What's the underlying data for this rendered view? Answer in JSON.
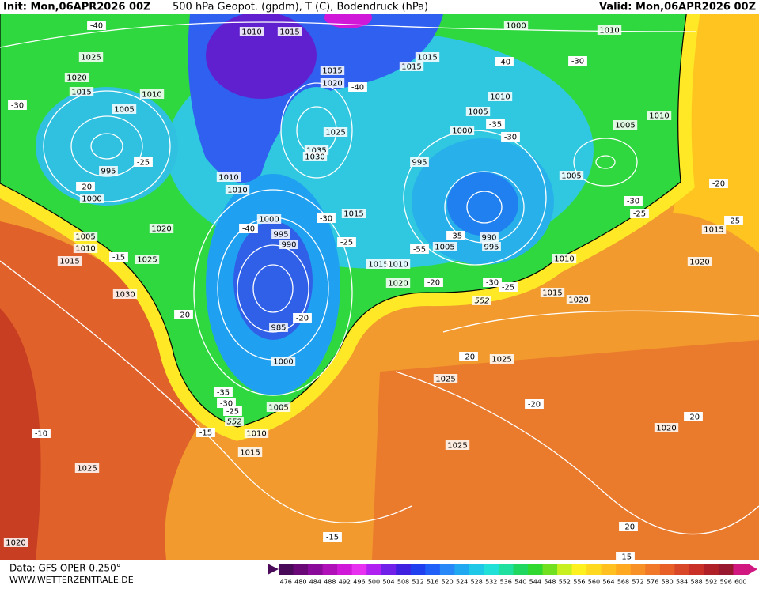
{
  "header": {
    "init": "Init: Mon,06APR2026 00Z",
    "title": "500 hPa Geopot. (gpdm), T (C), Bodendruck (hPa)",
    "valid": "Valid: Mon,06APR2026 00Z"
  },
  "map_labels": [
    "-40",
    "1010",
    "1015",
    "1025",
    "1020",
    "1015",
    "1010",
    "-30",
    "1005",
    "995",
    "-25",
    "-20",
    "1000",
    "1020",
    "1015",
    "-40",
    "1025",
    "1035",
    "1030",
    "1010",
    "1010",
    "1015",
    "1015",
    "-40",
    "-30",
    "1010",
    "1000",
    "1010",
    "1005",
    "-35",
    "1000",
    "-30",
    "1005",
    "1010",
    "995",
    "1005",
    "-20",
    "-30",
    "-25",
    "-25",
    "1015",
    "1020",
    "1000",
    "995",
    "990",
    "-30",
    "1015",
    "-40",
    "-25",
    "1005",
    "1010",
    "1015",
    "-15",
    "1025",
    "1020",
    "-35",
    "1005",
    "990",
    "995",
    "-55",
    "1015",
    "1010",
    "1010",
    "1020",
    "-20",
    "-30",
    "-25",
    "552",
    "1015",
    "1020",
    "1030",
    "-20",
    "-20",
    "985",
    "1000",
    "-20",
    "1025",
    "1025",
    "-35",
    "-30",
    "-25",
    "552",
    "1005",
    "-20",
    "-20",
    "1020",
    "-15",
    "1010",
    "-10",
    "1025",
    "1015",
    "1025",
    "-20",
    "-15",
    "1020",
    "-15"
  ],
  "legend": {
    "values": [
      476,
      480,
      484,
      488,
      492,
      496,
      500,
      504,
      508,
      512,
      516,
      520,
      524,
      528,
      532,
      536,
      540,
      544,
      548,
      552,
      556,
      560,
      564,
      568,
      572,
      576,
      580,
      584,
      588,
      592,
      596,
      600
    ],
    "colors": [
      "#4a0a5a",
      "#6a0878",
      "#8a0a9a",
      "#b010b8",
      "#d018d8",
      "#e830f0",
      "#b020f0",
      "#7020e8",
      "#4020e0",
      "#2040f0",
      "#2060f8",
      "#2888f8",
      "#20a8f0",
      "#20c8e8",
      "#20e0d8",
      "#20e0a0",
      "#20d860",
      "#30d830",
      "#70e020",
      "#c8f020",
      "#fff020",
      "#ffd820",
      "#ffc020",
      "#ffa820",
      "#f89028",
      "#f07828",
      "#e86028",
      "#d84828",
      "#c83028",
      "#b02028",
      "#981830",
      "#d01880"
    ]
  },
  "footer": {
    "data": "Data: GFS OPER 0.250°",
    "site": "WWW.WETTERZENTRALE.DE"
  }
}
